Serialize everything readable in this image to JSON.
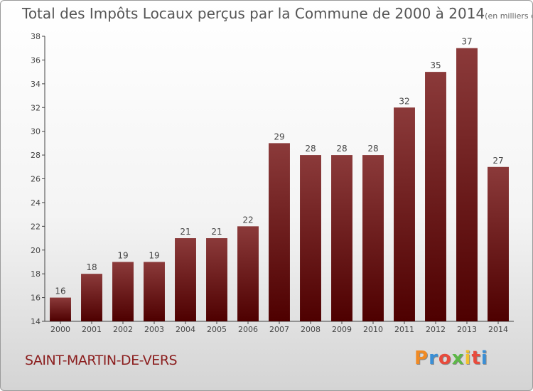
{
  "chart_data": {
    "type": "bar",
    "title": "Total des Impôts Locaux perçus par la Commune de 2000 à 2014",
    "title_unit": "(en milliers d'€)",
    "categories": [
      "2000",
      "2001",
      "2002",
      "2003",
      "2004",
      "2005",
      "2006",
      "2007",
      "2008",
      "2009",
      "2010",
      "2011",
      "2012",
      "2013",
      "2014"
    ],
    "values": [
      16,
      18,
      19,
      19,
      21,
      21,
      22,
      29,
      28,
      28,
      28,
      32,
      35,
      37,
      27
    ],
    "data_labels": [
      "16",
      "18",
      "19",
      "19",
      "21",
      "21",
      "22",
      "29",
      "28",
      "28",
      "28",
      "32",
      "35",
      "37",
      "27"
    ],
    "ylim": [
      14,
      38
    ],
    "yticks": [
      14,
      16,
      18,
      20,
      22,
      24,
      26,
      28,
      30,
      32,
      34,
      36,
      38
    ],
    "ytick_labels": [
      "14",
      "16",
      "18",
      "20",
      "22",
      "24",
      "26",
      "28",
      "30",
      "32",
      "34",
      "36",
      "38"
    ],
    "xlabel": "",
    "ylabel": "",
    "grid": false,
    "bar_color_top": "#8b3a3a",
    "bar_color_bottom": "#4e0000"
  },
  "footer": {
    "commune": "SAINT-MARTIN-DE-VERS",
    "logo_letters": [
      "P",
      "r",
      "o",
      "x",
      "i",
      "t",
      "i"
    ],
    "logo_colors": [
      "#f08a24",
      "#3a8fd6",
      "#e84b3c",
      "#5db847",
      "#f2c12e",
      "#e84b3c",
      "#3a8fd6"
    ]
  }
}
